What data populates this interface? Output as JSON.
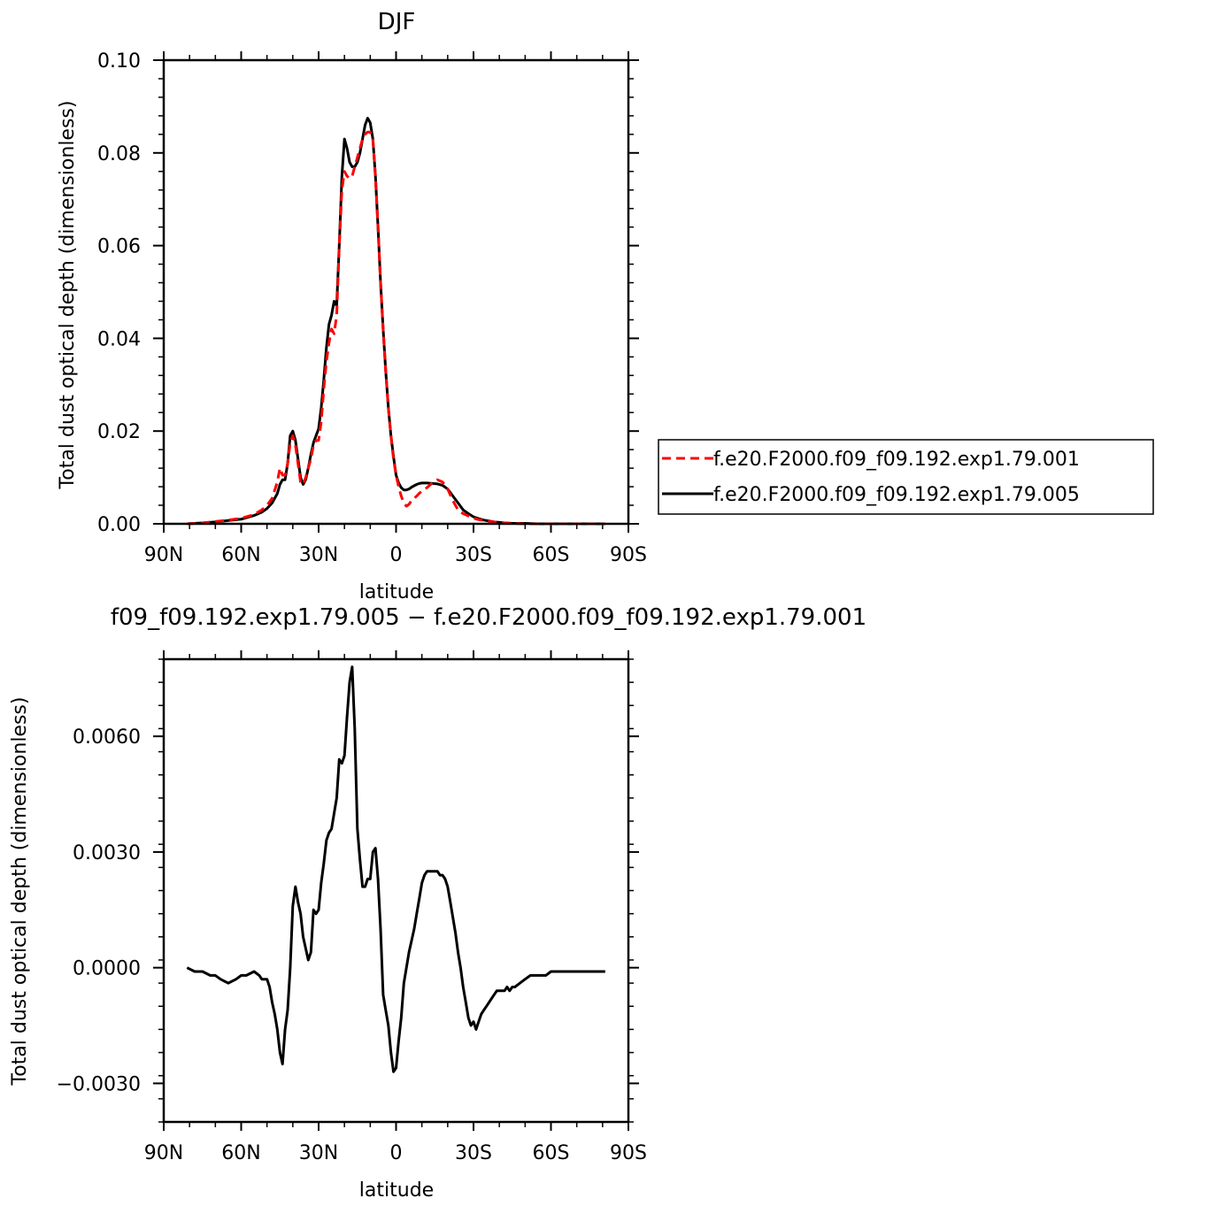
{
  "chart_data": [
    {
      "type": "line",
      "title": "DJF",
      "xlabel": "latitude",
      "ylabel": "Total dust optical depth (dimensionless)",
      "xlim": [
        90,
        -90
      ],
      "ylim": [
        0.0,
        0.1
      ],
      "x_ticks": [
        {
          "value": 90,
          "label": "90N"
        },
        {
          "value": 60,
          "label": "60N"
        },
        {
          "value": 30,
          "label": "30N"
        },
        {
          "value": 0,
          "label": "0"
        },
        {
          "value": -30,
          "label": "30S"
        },
        {
          "value": -60,
          "label": "60S"
        },
        {
          "value": -90,
          "label": "90S"
        }
      ],
      "y_ticks": [
        {
          "value": 0.0,
          "label": "0.00"
        },
        {
          "value": 0.02,
          "label": "0.02"
        },
        {
          "value": 0.04,
          "label": "0.04"
        },
        {
          "value": 0.06,
          "label": "0.06"
        },
        {
          "value": 0.08,
          "label": "0.08"
        },
        {
          "value": 0.1,
          "label": "0.10"
        }
      ],
      "legend": "right",
      "series": [
        {
          "name": "f.e20.F2000.f09_f09.192.exp1.79.001",
          "color": "#ff0000",
          "dash": "dashed",
          "x": [
            81,
            75,
            70,
            65,
            60,
            55,
            52,
            50,
            48,
            46,
            45,
            44,
            43,
            42,
            41,
            40,
            39,
            38,
            37,
            36,
            35,
            34,
            33,
            32,
            31,
            30,
            29,
            28,
            27,
            26,
            25,
            24,
            23,
            22,
            21,
            20,
            19,
            18,
            17,
            16,
            15,
            14,
            13,
            12,
            11,
            10,
            9,
            8,
            7,
            6,
            5,
            4,
            3,
            2,
            1,
            0,
            -1,
            -2,
            -3,
            -4,
            -5,
            -6,
            -7,
            -8,
            -9,
            -10,
            -12,
            -14,
            -16,
            -18,
            -20,
            -22,
            -24,
            -26,
            -28,
            -30,
            -32,
            -34,
            -36,
            -38,
            -40,
            -42,
            -45,
            -50,
            -55,
            -60,
            -65,
            -70,
            -75,
            -81
          ],
          "y": [
            0.0,
            0.0002,
            0.0005,
            0.0008,
            0.0012,
            0.002,
            0.003,
            0.004,
            0.0055,
            0.009,
            0.012,
            0.0105,
            0.0105,
            0.013,
            0.0175,
            0.019,
            0.017,
            0.013,
            0.009,
            0.0085,
            0.01,
            0.012,
            0.014,
            0.017,
            0.018,
            0.018,
            0.022,
            0.029,
            0.035,
            0.039,
            0.042,
            0.041,
            0.045,
            0.06,
            0.072,
            0.076,
            0.075,
            0.0745,
            0.075,
            0.077,
            0.079,
            0.081,
            0.083,
            0.084,
            0.0845,
            0.0845,
            0.083,
            0.075,
            0.064,
            0.052,
            0.042,
            0.033,
            0.025,
            0.019,
            0.014,
            0.0105,
            0.008,
            0.006,
            0.0045,
            0.0038,
            0.0042,
            0.005,
            0.0055,
            0.006,
            0.0066,
            0.007,
            0.0078,
            0.0088,
            0.0095,
            0.009,
            0.0075,
            0.005,
            0.003,
            0.0022,
            0.0017,
            0.0012,
            0.0009,
            0.0007,
            0.0005,
            0.0004,
            0.0003,
            0.0002,
            0.0001,
            0.0,
            0.0,
            0.0,
            0.0,
            0.0,
            0.0,
            0.0
          ]
        },
        {
          "name": "f.e20.F2000.f09_f09.192.exp1.79.005",
          "color": "#000000",
          "dash": "solid",
          "x": [
            81,
            75,
            70,
            65,
            60,
            55,
            52,
            50,
            48,
            46,
            45,
            44,
            43,
            42,
            41,
            40,
            39,
            38,
            37,
            36,
            35,
            34,
            33,
            32,
            31,
            30,
            29,
            28,
            27,
            26,
            25,
            24,
            23,
            22,
            21,
            20,
            19,
            18,
            17,
            16,
            15,
            14,
            13,
            12,
            11,
            10,
            9,
            8,
            7,
            6,
            5,
            4,
            3,
            2,
            1,
            0,
            -1,
            -2,
            -3,
            -4,
            -5,
            -6,
            -7,
            -8,
            -9,
            -10,
            -12,
            -14,
            -16,
            -18,
            -20,
            -22,
            -24,
            -26,
            -28,
            -30,
            -32,
            -34,
            -36,
            -38,
            -40,
            -42,
            -45,
            -50,
            -55,
            -60,
            -65,
            -70,
            -75,
            -81
          ],
          "y": [
            0.0,
            0.0002,
            0.0004,
            0.0007,
            0.001,
            0.0018,
            0.0025,
            0.0033,
            0.0045,
            0.0065,
            0.0085,
            0.0095,
            0.0095,
            0.013,
            0.019,
            0.02,
            0.018,
            0.014,
            0.01,
            0.0085,
            0.0095,
            0.012,
            0.015,
            0.0175,
            0.019,
            0.0205,
            0.025,
            0.031,
            0.038,
            0.043,
            0.045,
            0.048,
            0.047,
            0.06,
            0.075,
            0.083,
            0.081,
            0.078,
            0.077,
            0.077,
            0.078,
            0.08,
            0.083,
            0.086,
            0.0875,
            0.0865,
            0.083,
            0.075,
            0.064,
            0.052,
            0.042,
            0.033,
            0.025,
            0.019,
            0.0145,
            0.0105,
            0.0088,
            0.0078,
            0.0073,
            0.0073,
            0.0075,
            0.0079,
            0.0082,
            0.0085,
            0.0087,
            0.0088,
            0.0088,
            0.0087,
            0.0086,
            0.0083,
            0.0075,
            0.006,
            0.0045,
            0.003,
            0.0022,
            0.0015,
            0.0011,
            0.0008,
            0.0006,
            0.0004,
            0.0003,
            0.0002,
            0.0001,
            0.0001,
            0.0,
            0.0,
            0.0,
            0.0,
            0.0,
            0.0
          ]
        }
      ]
    },
    {
      "type": "line",
      "title": "f09_f09.192.exp1.79.005 − f.e20.F2000.f09_f09.192.exp1.79.001",
      "xlabel": "latitude",
      "ylabel": "Total dust optical depth (dimensionless)",
      "xlim": [
        90,
        -90
      ],
      "ylim": [
        -0.004,
        0.008
      ],
      "x_ticks": [
        {
          "value": 90,
          "label": "90N"
        },
        {
          "value": 60,
          "label": "60N"
        },
        {
          "value": 30,
          "label": "30N"
        },
        {
          "value": 0,
          "label": "0"
        },
        {
          "value": -30,
          "label": "30S"
        },
        {
          "value": -60,
          "label": "60S"
        },
        {
          "value": -90,
          "label": "90S"
        }
      ],
      "y_ticks": [
        {
          "value": -0.003,
          "label": "−0.0030"
        },
        {
          "value": 0.0,
          "label": "0.0000"
        },
        {
          "value": 0.003,
          "label": "0.0030"
        },
        {
          "value": 0.006,
          "label": "0.0060"
        }
      ],
      "series": [
        {
          "color": "#000000",
          "dash": "solid",
          "x": [
            81,
            78,
            75,
            72,
            70,
            68,
            65,
            62,
            60,
            58,
            55,
            53,
            52,
            51,
            50,
            49,
            48,
            47,
            46,
            45,
            44,
            43,
            42,
            41,
            40,
            39,
            38,
            37,
            36,
            35,
            34,
            33,
            32,
            31,
            30,
            29,
            28,
            27,
            26,
            25,
            24,
            23,
            22,
            21,
            20,
            19,
            18,
            17,
            16,
            15,
            14,
            13,
            12,
            11,
            10,
            9,
            8,
            7,
            6,
            5,
            4,
            3,
            2,
            1,
            0,
            -1,
            -2,
            -3,
            -4,
            -5,
            -6,
            -7,
            -8,
            -9,
            -10,
            -11,
            -12,
            -13,
            -14,
            -15,
            -16,
            -17,
            -18,
            -19,
            -20,
            -21,
            -22,
            -23,
            -24,
            -25,
            -26,
            -27,
            -28,
            -29,
            -30,
            -31,
            -32,
            -33,
            -34,
            -35,
            -36,
            -37,
            -38,
            -39,
            -40,
            -41,
            -42,
            -43,
            -44,
            -45,
            -46,
            -48,
            -50,
            -52,
            -55,
            -58,
            -60,
            -65,
            -70,
            -75,
            -81
          ],
          "y": [
            0.0,
            -0.0001,
            -0.0001,
            -0.0002,
            -0.0002,
            -0.0003,
            -0.0004,
            -0.0003,
            -0.0002,
            -0.0002,
            -0.0001,
            -0.0002,
            -0.0003,
            -0.0003,
            -0.0003,
            -0.0005,
            -0.0009,
            -0.0012,
            -0.0016,
            -0.0022,
            -0.0025,
            -0.0016,
            -0.0011,
            0.0,
            0.0016,
            0.0021,
            0.0017,
            0.0014,
            0.0008,
            0.0005,
            0.0002,
            0.0004,
            0.0015,
            0.0014,
            0.0015,
            0.0022,
            0.0027,
            0.0033,
            0.0035,
            0.0036,
            0.004,
            0.0044,
            0.0054,
            0.0053,
            0.0055,
            0.0065,
            0.0074,
            0.0078,
            0.0062,
            0.0036,
            0.0028,
            0.0021,
            0.0021,
            0.0023,
            0.0023,
            0.003,
            0.0031,
            0.0023,
            0.001,
            -0.0007,
            -0.0011,
            -0.0015,
            -0.0022,
            -0.0027,
            -0.0026,
            -0.0019,
            -0.0013,
            -0.0004,
            0.0,
            0.0004,
            0.0007,
            0.001,
            0.0014,
            0.0018,
            0.0022,
            0.0024,
            0.0025,
            0.0025,
            0.0025,
            0.0025,
            0.0025,
            0.0024,
            0.0024,
            0.0023,
            0.0021,
            0.0017,
            0.0013,
            0.0009,
            0.0004,
            0.0,
            -0.0005,
            -0.0009,
            -0.0013,
            -0.0015,
            -0.0014,
            -0.0016,
            -0.0014,
            -0.0012,
            -0.0011,
            -0.001,
            -0.0009,
            -0.0008,
            -0.0007,
            -0.0006,
            -0.0006,
            -0.0006,
            -0.0006,
            -0.0005,
            -0.0006,
            -0.0005,
            -0.0005,
            -0.0004,
            -0.0003,
            -0.0002,
            -0.0002,
            -0.0002,
            -0.0001,
            -0.0001,
            -0.0001,
            -0.0001,
            -0.0001
          ]
        }
      ]
    }
  ]
}
